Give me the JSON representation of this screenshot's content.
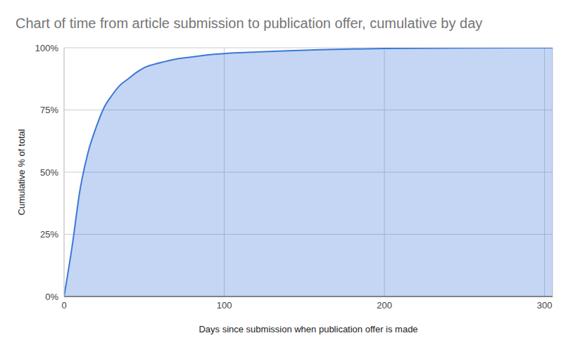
{
  "chart_data": {
    "type": "area",
    "title": "Chart of time from article submission to publication offer, cumulative by day",
    "x_label": "Days since submission when publication offer is made",
    "y_label": "Cumulative % of total",
    "x": [
      0,
      5,
      10,
      15,
      20,
      25,
      30,
      35,
      40,
      45,
      50,
      60,
      70,
      80,
      90,
      100,
      120,
      140,
      160,
      180,
      200,
      250,
      300,
      305
    ],
    "values": [
      0,
      20,
      43,
      58,
      68,
      76,
      81,
      85,
      87.5,
      90,
      92,
      94,
      95.5,
      96.3,
      97.2,
      97.7,
      98.3,
      98.8,
      99.2,
      99.5,
      99.7,
      99.9,
      100,
      100
    ],
    "color": "#3c78d8",
    "xlim": [
      0,
      305
    ],
    "xticks": [
      0,
      100,
      200,
      300
    ],
    "ylim": [
      0,
      100
    ],
    "yticks": [
      {
        "value": 0,
        "label": "0%"
      },
      {
        "value": 25,
        "label": "25%"
      },
      {
        "value": 50,
        "label": "50%"
      },
      {
        "value": 75,
        "label": "75%"
      },
      {
        "value": 100,
        "label": "100%"
      }
    ],
    "grid": true
  }
}
